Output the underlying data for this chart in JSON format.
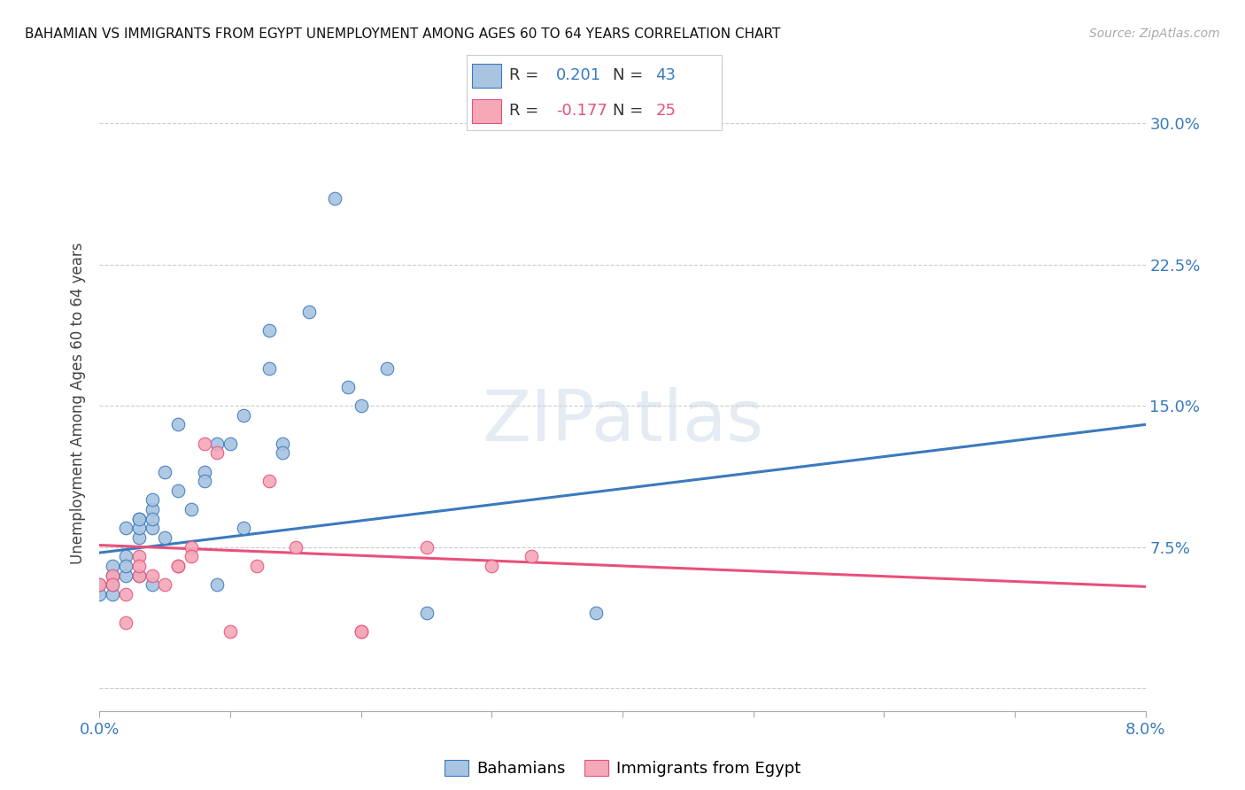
{
  "title": "BAHAMIAN VS IMMIGRANTS FROM EGYPT UNEMPLOYMENT AMONG AGES 60 TO 64 YEARS CORRELATION CHART",
  "source": "Source: ZipAtlas.com",
  "ylabel_label": "Unemployment Among Ages 60 to 64 years",
  "ylabel_ticks": [
    0.0,
    0.075,
    0.15,
    0.225,
    0.3
  ],
  "ylabel_labels": [
    "",
    "7.5%",
    "15.0%",
    "22.5%",
    "30.0%"
  ],
  "xmin": 0.0,
  "xmax": 0.08,
  "ymin": -0.012,
  "ymax": 0.315,
  "blue_label": "Bahamians",
  "pink_label": "Immigrants from Egypt",
  "blue_R": "0.201",
  "blue_N": "43",
  "pink_R": "-0.177",
  "pink_N": "25",
  "blue_color": "#a8c4e0",
  "pink_color": "#f4a8b8",
  "blue_line_color": "#3a7abf",
  "pink_line_color": "#e8507a",
  "blue_scatter": [
    [
      0.0,
      0.05
    ],
    [
      0.0,
      0.055
    ],
    [
      0.001,
      0.06
    ],
    [
      0.001,
      0.05
    ],
    [
      0.001,
      0.055
    ],
    [
      0.001,
      0.065
    ],
    [
      0.002,
      0.06
    ],
    [
      0.002,
      0.07
    ],
    [
      0.002,
      0.065
    ],
    [
      0.002,
      0.085
    ],
    [
      0.003,
      0.09
    ],
    [
      0.003,
      0.08
    ],
    [
      0.003,
      0.085
    ],
    [
      0.003,
      0.09
    ],
    [
      0.003,
      0.06
    ],
    [
      0.004,
      0.095
    ],
    [
      0.004,
      0.085
    ],
    [
      0.004,
      0.09
    ],
    [
      0.004,
      0.1
    ],
    [
      0.004,
      0.055
    ],
    [
      0.005,
      0.115
    ],
    [
      0.005,
      0.08
    ],
    [
      0.006,
      0.14
    ],
    [
      0.006,
      0.105
    ],
    [
      0.007,
      0.095
    ],
    [
      0.008,
      0.115
    ],
    [
      0.008,
      0.11
    ],
    [
      0.009,
      0.13
    ],
    [
      0.009,
      0.055
    ],
    [
      0.01,
      0.13
    ],
    [
      0.011,
      0.145
    ],
    [
      0.011,
      0.085
    ],
    [
      0.013,
      0.17
    ],
    [
      0.013,
      0.19
    ],
    [
      0.014,
      0.13
    ],
    [
      0.014,
      0.125
    ],
    [
      0.016,
      0.2
    ],
    [
      0.018,
      0.26
    ],
    [
      0.019,
      0.16
    ],
    [
      0.02,
      0.15
    ],
    [
      0.022,
      0.17
    ],
    [
      0.025,
      0.04
    ],
    [
      0.038,
      0.04
    ]
  ],
  "pink_scatter": [
    [
      0.0,
      0.055
    ],
    [
      0.001,
      0.06
    ],
    [
      0.001,
      0.055
    ],
    [
      0.002,
      0.05
    ],
    [
      0.002,
      0.035
    ],
    [
      0.003,
      0.07
    ],
    [
      0.003,
      0.06
    ],
    [
      0.003,
      0.065
    ],
    [
      0.004,
      0.06
    ],
    [
      0.005,
      0.055
    ],
    [
      0.006,
      0.065
    ],
    [
      0.006,
      0.065
    ],
    [
      0.007,
      0.075
    ],
    [
      0.007,
      0.07
    ],
    [
      0.008,
      0.13
    ],
    [
      0.009,
      0.125
    ],
    [
      0.01,
      0.03
    ],
    [
      0.012,
      0.065
    ],
    [
      0.013,
      0.11
    ],
    [
      0.015,
      0.075
    ],
    [
      0.02,
      0.03
    ],
    [
      0.02,
      0.03
    ],
    [
      0.025,
      0.075
    ],
    [
      0.03,
      0.065
    ],
    [
      0.033,
      0.07
    ]
  ],
  "blue_trend_x": [
    0.0,
    0.08
  ],
  "blue_trend_y": [
    0.072,
    0.14
  ],
  "pink_trend_x": [
    0.0,
    0.08
  ],
  "pink_trend_y": [
    0.076,
    0.054
  ],
  "grid_color": "#cccccc",
  "watermark": "ZIPatlas",
  "background_color": "#ffffff",
  "xtick_positions": [
    0.0,
    0.01,
    0.02,
    0.03,
    0.04,
    0.05,
    0.06,
    0.07,
    0.08
  ]
}
